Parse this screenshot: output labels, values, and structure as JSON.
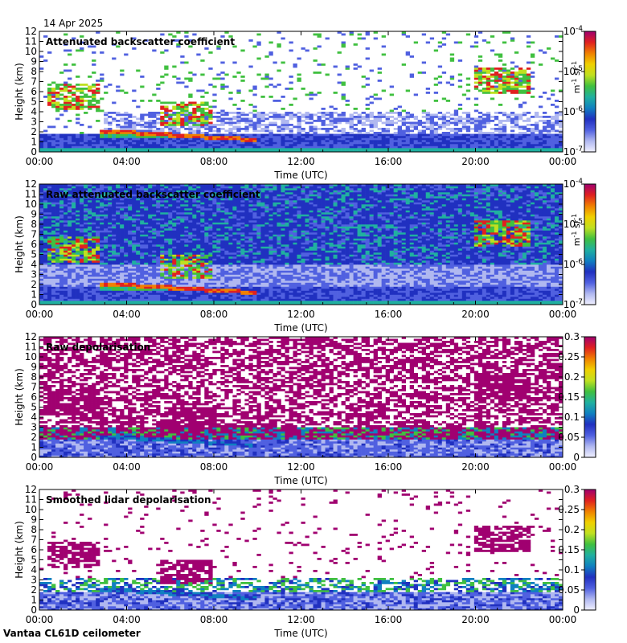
{
  "header": {
    "date": "14 Apr 2025"
  },
  "footer": {
    "site": "Vantaa CL61D ceilometer"
  },
  "panels": [
    {
      "title": "Attenuated backscatter coefficient",
      "colorbar_type": "log",
      "colorbar_ticks": [
        {
          "base": "10",
          "exp": "-4"
        },
        {
          "base": "10",
          "exp": "-5"
        },
        {
          "base": "10",
          "exp": "-6"
        },
        {
          "base": "10",
          "exp": "-7"
        }
      ],
      "units": {
        "m": "m",
        "m_exp": "-1",
        "sr": "sr",
        "sr_exp": "-1"
      }
    },
    {
      "title": "Raw attenuated backscatter coefficient",
      "colorbar_type": "log",
      "colorbar_ticks": [
        {
          "base": "10",
          "exp": "-4"
        },
        {
          "base": "10",
          "exp": "-5"
        },
        {
          "base": "10",
          "exp": "-6"
        },
        {
          "base": "10",
          "exp": "-7"
        }
      ],
      "units": {
        "m": "m",
        "m_exp": "-1",
        "sr": "sr",
        "sr_exp": "-1"
      }
    },
    {
      "title": "Raw depolarisation",
      "colorbar_type": "linear",
      "colorbar_ticks": [
        "0.3",
        "0.25",
        "0.2",
        "0.15",
        "0.1",
        "0.05",
        "0"
      ]
    },
    {
      "title": "Smoothed lidar depolarisation",
      "colorbar_type": "linear",
      "colorbar_ticks": [
        "0.3",
        "0.25",
        "0.2",
        "0.15",
        "0.1",
        "0.05",
        "0"
      ]
    }
  ],
  "chart_data": {
    "type": "heatmap",
    "xlabel": "Time (UTC)",
    "ylabel": "Height (km)",
    "x_ticks": [
      "00:00",
      "04:00",
      "08:00",
      "12:00",
      "16:00",
      "20:00",
      "00:00"
    ],
    "y_ticks": [
      "0",
      "1",
      "2",
      "3",
      "4",
      "5",
      "6",
      "7",
      "8",
      "9",
      "10",
      "11",
      "12"
    ],
    "xlim": [
      0,
      24
    ],
    "ylim": [
      0,
      12
    ],
    "colormap": [
      "#f0f0ff",
      "#b0b8f0",
      "#5060e0",
      "#2030c0",
      "#1080c0",
      "#20b0a0",
      "#40c040",
      "#c0e020",
      "#f0d000",
      "#f08000",
      "#e02020",
      "#a00070"
    ],
    "features": [
      {
        "name": "boundary layer",
        "t_start": 0,
        "t_end": 24,
        "top_km": 1.8
      },
      {
        "name": "stratiform cloud base",
        "t_start": 2.8,
        "t_end": 10,
        "height_start_km": 2.1,
        "height_end_km": 1.2
      },
      {
        "name": "mid-level cloud",
        "t_start": 0.3,
        "t_end": 2.8,
        "bottom_km": 4.2,
        "top_km": 6.8
      },
      {
        "name": "cloud near 06:30",
        "t_start": 5.5,
        "t_end": 8,
        "bottom_km": 2.5,
        "top_km": 5.0
      },
      {
        "name": "high cloud near 21:00",
        "t_start": 20,
        "t_end": 22.5,
        "bottom_km": 5.8,
        "top_km": 8.5
      }
    ]
  }
}
